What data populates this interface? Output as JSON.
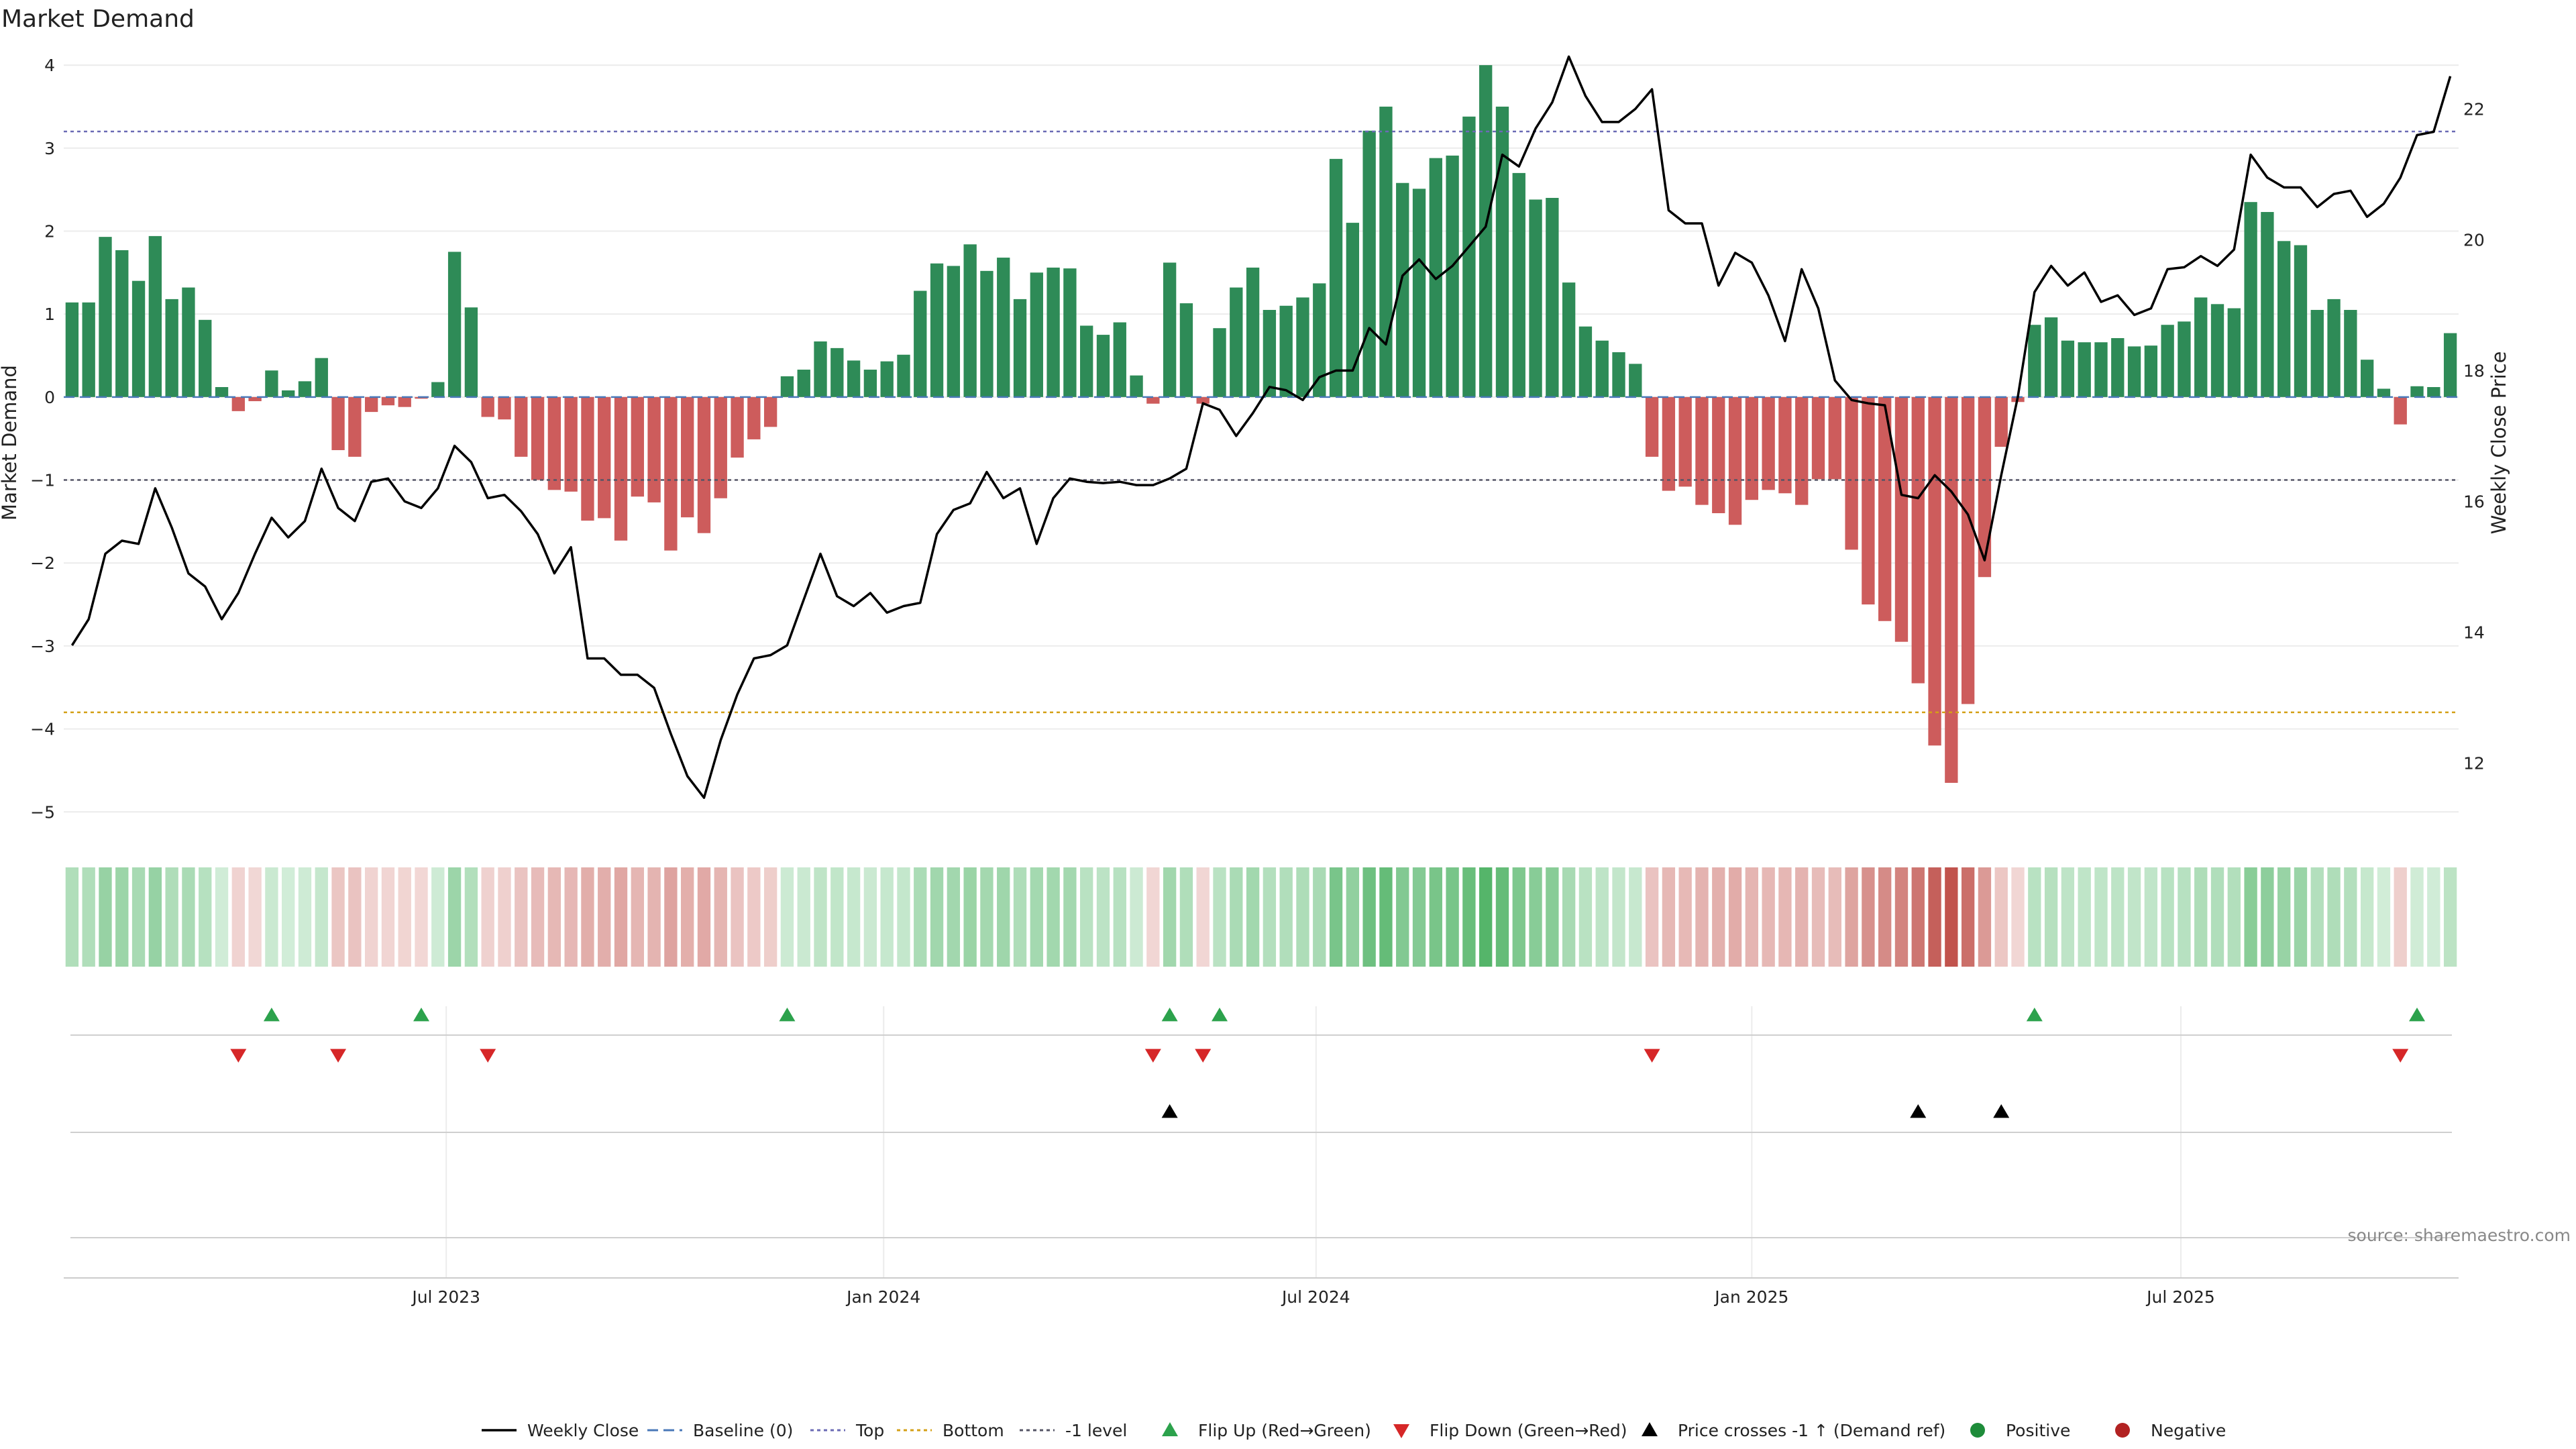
{
  "chart_data": {
    "type": "bar",
    "title": "Market Demand",
    "ylabel": "Market Demand",
    "y2label": "Weekly Close Price",
    "ylim": [
      -5.2,
      4.3
    ],
    "y2lim": [
      11,
      23.05
    ],
    "yticks": [
      4,
      3,
      2,
      1,
      0,
      -1,
      -2,
      -3,
      -4,
      -5
    ],
    "yticklabels": [
      "4",
      "3",
      "2",
      "1",
      "0",
      "−1",
      "−2",
      "−3",
      "−4",
      "−5"
    ],
    "y2ticks": [
      22,
      20,
      18,
      16,
      14,
      12
    ],
    "y2ticklabels": [
      "22",
      "20",
      "18",
      "16",
      "14",
      "12"
    ],
    "xticks": [
      {
        "label": "Jul 2023",
        "index": 22.5
      },
      {
        "label": "Jan 2024",
        "index": 48.8
      },
      {
        "label": "Jul 2024",
        "index": 74.8
      },
      {
        "label": "Jan 2025",
        "index": 101
      },
      {
        "label": "Jul 2025",
        "index": 126.8
      }
    ],
    "grid": true,
    "x": [
      "2023-01-06",
      "2023-01-13",
      "2023-01-20",
      "2023-01-27",
      "2023-02-03",
      "2023-02-10",
      "2023-02-17",
      "2023-02-24",
      "2023-03-03",
      "2023-03-10",
      "2023-03-17",
      "2023-03-24",
      "2023-03-31",
      "2023-04-07",
      "2023-04-14",
      "2023-04-21",
      "2023-04-28",
      "2023-05-05",
      "2023-05-12",
      "2023-05-19",
      "2023-05-26",
      "2023-06-02",
      "2023-06-09",
      "2023-06-16",
      "2023-06-23",
      "2023-06-30",
      "2023-07-07",
      "2023-07-14",
      "2023-07-21",
      "2023-07-28",
      "2023-08-04",
      "2023-08-11",
      "2023-08-18",
      "2023-08-25",
      "2023-09-01",
      "2023-09-08",
      "2023-09-15",
      "2023-09-22",
      "2023-09-29",
      "2023-10-06",
      "2023-10-13",
      "2023-10-20",
      "2023-10-27",
      "2023-11-03",
      "2023-11-10",
      "2023-11-17",
      "2023-11-24",
      "2023-12-01",
      "2023-12-08",
      "2023-12-15",
      "2023-12-22",
      "2023-12-29",
      "2024-01-05",
      "2024-01-12",
      "2024-01-19",
      "2024-01-26",
      "2024-02-02",
      "2024-02-09",
      "2024-02-16",
      "2024-02-23",
      "2024-03-01",
      "2024-03-08",
      "2024-03-15",
      "2024-03-22",
      "2024-03-29",
      "2024-04-05",
      "2024-04-12",
      "2024-04-19",
      "2024-04-26",
      "2024-05-03",
      "2024-05-10",
      "2024-05-17",
      "2024-05-24",
      "2024-05-31",
      "2024-06-07",
      "2024-06-14",
      "2024-06-21",
      "2024-06-28",
      "2024-07-05",
      "2024-07-12",
      "2024-07-19",
      "2024-07-26",
      "2024-08-02",
      "2024-08-09",
      "2024-08-16",
      "2024-08-23",
      "2024-08-30",
      "2024-09-06",
      "2024-09-13",
      "2024-09-20",
      "2024-09-27",
      "2024-10-04",
      "2024-10-11",
      "2024-10-18",
      "2024-10-25",
      "2024-11-01",
      "2024-11-08",
      "2024-11-15",
      "2024-11-22",
      "2024-11-29",
      "2024-12-06",
      "2024-12-13",
      "2024-12-20",
      "2024-12-27",
      "2025-01-03",
      "2025-01-10",
      "2025-01-17",
      "2025-01-24",
      "2025-01-31",
      "2025-02-07",
      "2025-02-14",
      "2025-02-21",
      "2025-02-28",
      "2025-03-07",
      "2025-03-14",
      "2025-03-21",
      "2025-03-28",
      "2025-04-04",
      "2025-04-11",
      "2025-04-18",
      "2025-04-25",
      "2025-05-02",
      "2025-05-09",
      "2025-05-16",
      "2025-05-23",
      "2025-05-30",
      "2025-06-06",
      "2025-06-13",
      "2025-06-20",
      "2025-06-27",
      "2025-07-04",
      "2025-07-11",
      "2025-07-18",
      "2025-07-25",
      "2025-08-01",
      "2025-08-08",
      "2025-08-15",
      "2025-08-22",
      "2025-08-29",
      "2025-09-05",
      "2025-09-12",
      "2025-09-19",
      "2025-09-26",
      "2025-10-03"
    ],
    "series": [
      {
        "name": "Market Demand",
        "kind": "bar",
        "axis": "left",
        "values": [
          1.14,
          1.14,
          1.93,
          1.77,
          1.4,
          1.94,
          1.18,
          1.32,
          0.93,
          0.12,
          -0.17,
          -0.05,
          0.32,
          0.08,
          0.19,
          0.47,
          -0.64,
          -0.72,
          -0.18,
          -0.1,
          -0.12,
          -0.02,
          0.18,
          1.75,
          1.08,
          -0.24,
          -0.27,
          -0.72,
          -1.0,
          -1.12,
          -1.14,
          -1.49,
          -1.46,
          -1.73,
          -1.2,
          -1.27,
          -1.85,
          -1.45,
          -1.64,
          -1.22,
          -0.73,
          -0.51,
          -0.36,
          0.25,
          0.33,
          0.67,
          0.59,
          0.44,
          0.33,
          0.43,
          0.51,
          1.28,
          1.61,
          1.58,
          1.84,
          1.52,
          1.68,
          1.18,
          1.5,
          1.56,
          1.55,
          0.86,
          0.75,
          0.9,
          0.26,
          -0.08,
          1.62,
          1.13,
          -0.08,
          0.83,
          1.32,
          1.56,
          1.05,
          1.1,
          1.2,
          1.37,
          2.87,
          2.1,
          3.21,
          3.5,
          2.58,
          2.51,
          2.88,
          2.91,
          3.38,
          4.0,
          3.5,
          2.7,
          2.38,
          2.4,
          1.38,
          0.85,
          0.68,
          0.54,
          0.4,
          -0.72,
          -1.13,
          -1.08,
          -1.3,
          -1.4,
          -1.54,
          -1.24,
          -1.12,
          -1.16,
          -1.3,
          -0.99,
          -0.99,
          -1.84,
          -2.5,
          -2.7,
          -2.95,
          -3.45,
          -4.2,
          -4.65,
          -3.7,
          -2.17,
          -0.6,
          -0.06,
          0.87,
          0.96,
          0.68,
          0.66,
          0.66,
          0.71,
          0.61,
          0.62,
          0.87,
          0.91,
          1.2,
          1.12,
          1.07,
          2.35,
          2.23,
          1.88,
          1.83,
          1.05,
          1.18,
          1.05,
          0.45,
          0.1,
          -0.33,
          0.13,
          0.12,
          0.77
        ]
      },
      {
        "name": "Weekly Close",
        "kind": "line",
        "axis": "right",
        "values": [
          13.8,
          14.2,
          15.2,
          15.4,
          15.35,
          16.2,
          15.6,
          14.9,
          14.7,
          14.2,
          14.6,
          15.2,
          15.75,
          15.45,
          15.7,
          16.5,
          15.9,
          15.7,
          16.3,
          16.35,
          16.0,
          15.9,
          16.2,
          16.85,
          16.6,
          16.05,
          16.1,
          15.85,
          15.5,
          14.9,
          15.3,
          13.6,
          13.6,
          13.35,
          13.35,
          13.15,
          12.45,
          11.8,
          11.47,
          12.35,
          13.05,
          13.6,
          13.65,
          13.8,
          14.5,
          15.2,
          14.55,
          14.4,
          14.6,
          14.3,
          14.4,
          14.45,
          15.5,
          15.87,
          15.97,
          16.45,
          16.05,
          16.2,
          15.35,
          16.05,
          16.35,
          16.3,
          16.28,
          16.3,
          16.25,
          16.25,
          16.35,
          16.5,
          17.5,
          17.4,
          17.0,
          17.35,
          17.75,
          17.7,
          17.55,
          17.9,
          18.0,
          18.0,
          18.65,
          18.4,
          19.45,
          19.7,
          19.4,
          19.6,
          19.9,
          20.2,
          21.3,
          21.12,
          21.7,
          22.1,
          22.8,
          22.2,
          21.8,
          21.8,
          22.0,
          22.3,
          20.45,
          20.25,
          20.25,
          19.3,
          19.8,
          19.65,
          19.15,
          18.45,
          19.55,
          18.95,
          17.85,
          17.55,
          17.5,
          17.47,
          16.1,
          16.05,
          16.4,
          16.15,
          15.8,
          15.1,
          16.4,
          17.6,
          19.2,
          19.6,
          19.3,
          19.5,
          19.05,
          19.15,
          18.85,
          18.95,
          19.55,
          19.58,
          19.75,
          19.6,
          19.85,
          21.3,
          20.95,
          20.8,
          20.8,
          20.5,
          20.7,
          20.75,
          20.35,
          20.55,
          20.95,
          21.6,
          21.65,
          22.5
        ]
      }
    ],
    "reference_lines": [
      {
        "name": "Baseline (0)",
        "value": 0
      },
      {
        "name": "Top",
        "value": 3.2
      },
      {
        "name": "Bottom",
        "value": -3.8
      },
      {
        "name": "-1 level",
        "value": -1
      }
    ],
    "events": {
      "flip_up": [
        12,
        21,
        43,
        66,
        69,
        118,
        141
      ],
      "flip_down": [
        10,
        16,
        25,
        65,
        68,
        95,
        140
      ],
      "price_cross_up": [
        66,
        111,
        116
      ]
    },
    "legend_position": "bottom",
    "legend": [
      {
        "label": "Weekly Close",
        "kind": "line"
      },
      {
        "label": "Baseline (0)",
        "kind": "dashed"
      },
      {
        "label": "Top",
        "kind": "dotted-purple"
      },
      {
        "label": "Bottom",
        "kind": "dotted-orange"
      },
      {
        "label": "-1 level",
        "kind": "dotted-gray"
      },
      {
        "label": "Flip Up (Red→Green)",
        "kind": "tri-up-green"
      },
      {
        "label": "Flip Down (Green→Red)",
        "kind": "tri-down-red"
      },
      {
        "label": "Price crosses -1 ↑ (Demand ref)",
        "kind": "tri-up-black"
      },
      {
        "label": "Positive",
        "kind": "dot-green"
      },
      {
        "label": "Negative",
        "kind": "dot-red"
      }
    ],
    "source": "source: sharemaestro.com"
  },
  "colors": {
    "positive": "#2e8b57",
    "negative": "#cd5c5c",
    "flip_up": "#2ca24c",
    "flip_down": "#d62728",
    "line": "#000000",
    "top": "#6b6bb5",
    "bottom": "#d4a017",
    "minus_one": "#555566",
    "baseline": "#4a78b8"
  }
}
